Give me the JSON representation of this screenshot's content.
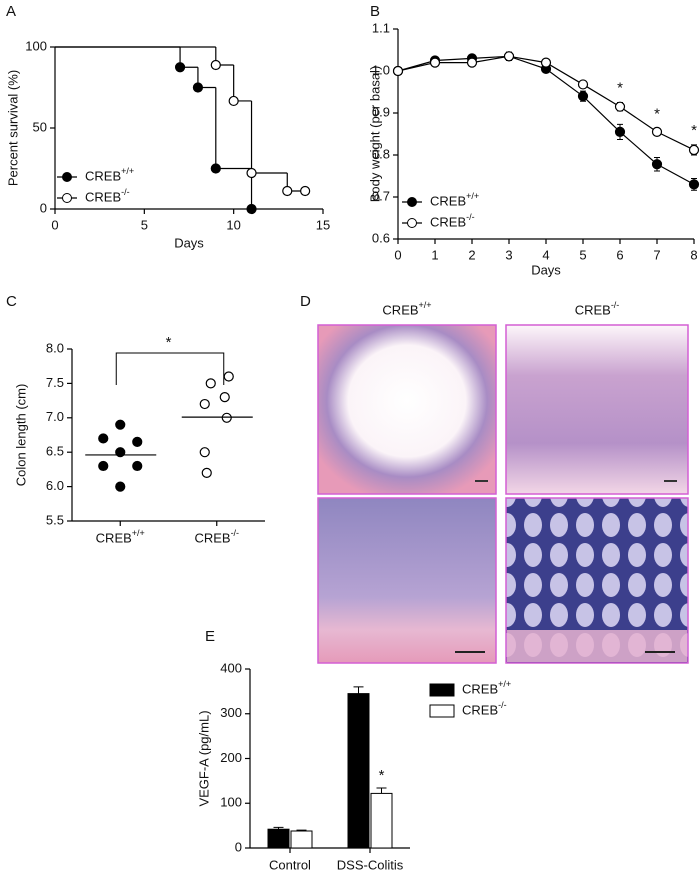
{
  "chart_data": [
    {
      "type": "step",
      "label": "A",
      "xlabel": "Days",
      "ylabel": "Percent survival (%)",
      "xlim": [
        0,
        15
      ],
      "ylim": [
        0,
        100
      ],
      "xticks": [
        0,
        5,
        10,
        15
      ],
      "yticks": [
        0,
        50,
        100
      ],
      "legend": "lower left",
      "series": [
        {
          "name": "CREB+/+",
          "color": "#000000",
          "marker": "filled",
          "x": [
            0,
            7,
            8,
            9,
            11
          ],
          "values": [
            100,
            87.5,
            75,
            25,
            0
          ]
        },
        {
          "name": "CREB-/-",
          "color": "#000000",
          "marker": "open",
          "x": [
            0,
            9,
            10,
            11,
            13,
            14
          ],
          "values": [
            100,
            88.9,
            66.7,
            22.2,
            11.1,
            11.1
          ]
        }
      ]
    },
    {
      "type": "line",
      "label": "B",
      "xlabel": "Days",
      "ylabel": "Body weight (per basal)",
      "xlim": [
        0,
        8
      ],
      "ylim": [
        0.6,
        1.1
      ],
      "xticks": [
        0,
        1,
        2,
        3,
        4,
        5,
        6,
        7,
        8
      ],
      "yticks": [
        0.6,
        0.7,
        0.8,
        0.9,
        {
          "value": 1,
          "label": "1.0"
        },
        1.1
      ],
      "legend": "lower left",
      "x": [
        0,
        1,
        2,
        3,
        4,
        5,
        6,
        7,
        8
      ],
      "annotations": [
        null,
        null,
        null,
        null,
        null,
        null,
        "*",
        "*",
        "*"
      ],
      "series": [
        {
          "name": "CREB+/+",
          "color": "#000000",
          "marker": "filled",
          "values": [
            1.0,
            1.025,
            1.03,
            1.035,
            1.005,
            0.94,
            0.855,
            0.778,
            0.73
          ],
          "errors": [
            0.004,
            0.006,
            0.008,
            0.01,
            0.006,
            0.012,
            0.018,
            0.016,
            0.014
          ]
        },
        {
          "name": "CREB-/-",
          "color": "#000000",
          "marker": "open",
          "values": [
            1.0,
            1.02,
            1.02,
            1.035,
            1.02,
            0.968,
            0.915,
            0.855,
            0.812
          ],
          "errors": [
            0.004,
            0.005,
            0.006,
            0.008,
            0.005,
            0.008,
            0.01,
            0.008,
            0.012
          ]
        }
      ]
    },
    {
      "type": "strip",
      "label": "C",
      "ylabel": "Colon length (cm)",
      "ylim": [
        5.5,
        8
      ],
      "yticks": [
        5.5,
        {
          "value": 6,
          "label": "6.0"
        },
        6.5,
        {
          "value": 7,
          "label": "7.0"
        },
        7.5,
        {
          "value": 8,
          "label": "8.0"
        }
      ],
      "categories": [
        "CREB+/+",
        "CREB-/-"
      ],
      "markers": [
        "filled",
        "open"
      ],
      "color": "#000000",
      "values": [
        [
          6.9,
          6.7,
          6.65,
          6.5,
          6.3,
          6.3,
          6.0
        ],
        [
          7.6,
          7.5,
          7.3,
          7.2,
          7.0,
          6.5,
          6.2
        ]
      ],
      "means": [
        6.46,
        7.01
      ],
      "significance": "*"
    },
    {
      "type": "bar",
      "label": "E",
      "ylabel": "VEGF-A (pg/mL)",
      "ylim": [
        0,
        400
      ],
      "yticks": [
        0,
        100,
        200,
        300,
        400
      ],
      "legend": "upper right",
      "categories": [
        "Control",
        "DSS-Colitis"
      ],
      "series": [
        {
          "name": "CREB+/+",
          "color": "#000000",
          "values": [
            42,
            345
          ],
          "errors": [
            4,
            15
          ]
        },
        {
          "name": "CREB-/-",
          "color": "#ffffff",
          "values": [
            38,
            122
          ],
          "errors": [
            2,
            12
          ],
          "annotations": [
            null,
            "*"
          ]
        }
      ]
    }
  ],
  "histology": {
    "label": "D",
    "column_labels": [
      "CREB+/+",
      "CREB-/-"
    ]
  }
}
